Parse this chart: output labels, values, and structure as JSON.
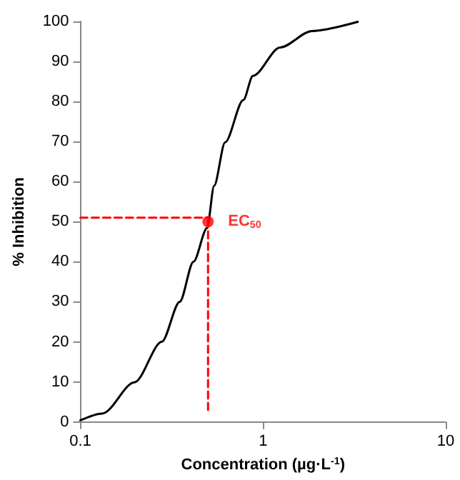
{
  "chart_data": {
    "type": "line",
    "xlabel": "Concentration (µg·L$^{-1}$)",
    "ylabel": "% Inhibition",
    "log": "x",
    "xlim": [
      0.1,
      10
    ],
    "xticks": [
      0.1,
      1,
      10
    ],
    "ylim": [
      0,
      100
    ],
    "yticks": [
      0,
      10,
      20,
      30,
      40,
      50,
      60,
      70,
      80,
      90,
      100
    ],
    "grid": false,
    "marker": "none",
    "line_style": "solid",
    "series": [
      {
        "color": "#000000",
        "x": [
          0.1,
          0.132,
          0.198,
          0.279,
          0.35,
          0.416,
          0.494,
          0.54,
          0.62,
          0.78,
          0.88,
          1.24,
          1.85,
          3.3
        ],
        "values": [
          0.4,
          2.1,
          9.9,
          20,
          30,
          40,
          48.4,
          59,
          69.8,
          80.4,
          86.4,
          93.5,
          97.6,
          99.9
        ]
      },
      {
        "type": "line",
        "color": "#ff0000",
        "line_style": "dashed",
        "x": [
          0.1,
          0.5
        ],
        "values": [
          51,
          51
        ]
      },
      {
        "type": "line",
        "color": "#ff0000",
        "line_style": "dashed",
        "x": [
          0.5,
          0.5
        ],
        "values": [
          3,
          51
        ]
      },
      {
        "type": "scatter",
        "color": "#ff0000",
        "marker": "circle",
        "x": [
          0.5
        ],
        "values": [
          50
        ]
      }
    ],
    "annotations": [
      {
        "text": "EC$_{50}$",
        "x": 0.5,
        "y": 50
      }
    ]
  }
}
